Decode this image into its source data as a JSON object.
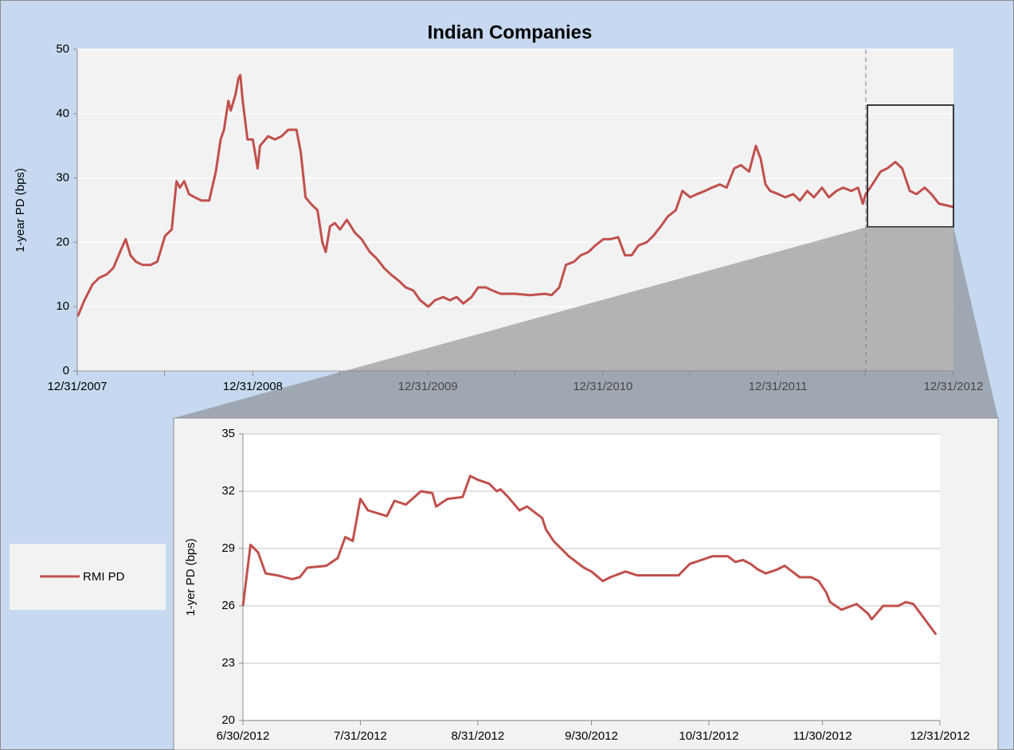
{
  "chart_data": [
    {
      "type": "line",
      "title": "Indian Companies",
      "ylabel": "1-year PD (bps)",
      "x": [
        "2008-01-01",
        "2008-01-15",
        "2008-02-01",
        "2008-02-15",
        "2008-03-01",
        "2008-03-15",
        "2008-04-01",
        "2008-04-10",
        "2008-04-20",
        "2008-05-01",
        "2008-05-15",
        "2008-06-01",
        "2008-06-15",
        "2008-07-01",
        "2008-07-15",
        "2008-07-25",
        "2008-08-01",
        "2008-08-10",
        "2008-08-20",
        "2008-09-01",
        "2008-09-15",
        "2008-10-01",
        "2008-10-15",
        "2008-10-25",
        "2008-11-01",
        "2008-11-10",
        "2008-11-15",
        "2008-11-25",
        "2008-12-01",
        "2008-12-05",
        "2008-12-10",
        "2008-12-20",
        "2008-12-31",
        "2009-01-10",
        "2009-01-15",
        "2009-02-01",
        "2009-02-15",
        "2009-03-01",
        "2009-03-15",
        "2009-04-01",
        "2009-04-10",
        "2009-04-20",
        "2009-05-01",
        "2009-05-15",
        "2009-05-25",
        "2009-06-01",
        "2009-06-10",
        "2009-06-20",
        "2009-07-01",
        "2009-07-15",
        "2009-08-01",
        "2009-08-15",
        "2009-09-01",
        "2009-09-15",
        "2009-10-01",
        "2009-10-15",
        "2009-11-01",
        "2009-11-15",
        "2009-12-01",
        "2009-12-15",
        "2010-01-01",
        "2010-01-15",
        "2010-02-01",
        "2010-02-15",
        "2010-03-01",
        "2010-03-15",
        "2010-04-01",
        "2010-04-15",
        "2010-05-01",
        "2010-05-15",
        "2010-06-01",
        "2010-07-01",
        "2010-08-01",
        "2010-09-01",
        "2010-09-15",
        "2010-10-01",
        "2010-10-15",
        "2010-11-01",
        "2010-11-15",
        "2010-12-01",
        "2010-12-15",
        "2011-01-01",
        "2011-01-15",
        "2011-02-01",
        "2011-02-15",
        "2011-03-01",
        "2011-03-15",
        "2011-04-01",
        "2011-04-15",
        "2011-05-01",
        "2011-05-15",
        "2011-06-01",
        "2011-06-15",
        "2011-07-01",
        "2011-07-15",
        "2011-08-01",
        "2011-08-15",
        "2011-09-01",
        "2011-09-15",
        "2011-10-01",
        "2011-10-15",
        "2011-11-01",
        "2011-11-15",
        "2011-11-25",
        "2011-12-05",
        "2011-12-15",
        "2012-01-01",
        "2012-01-15",
        "2012-02-01",
        "2012-02-15",
        "2012-03-01",
        "2012-03-15",
        "2012-04-01",
        "2012-04-15",
        "2012-05-01",
        "2012-05-15",
        "2012-06-01",
        "2012-06-15",
        "2012-06-25",
        "2012-07-01",
        "2012-07-15",
        "2012-08-01",
        "2012-08-15",
        "2012-09-01",
        "2012-09-15",
        "2012-10-01",
        "2012-10-15",
        "2012-11-01",
        "2012-11-15",
        "2012-12-01",
        "2012-12-31"
      ],
      "series": [
        {
          "name": "RMI PD",
          "color": "#c0504d",
          "values": [
            8.5,
            11,
            13.5,
            14.5,
            15,
            16,
            19,
            20.5,
            18,
            17,
            16.5,
            16.5,
            17,
            21,
            22,
            29.5,
            28.5,
            29.5,
            27.5,
            27,
            26.5,
            26.5,
            31,
            36,
            37.5,
            42,
            40.5,
            43,
            45.5,
            46,
            42,
            36,
            36,
            31.5,
            35,
            36.5,
            36,
            36.5,
            37.5,
            37.5,
            34,
            27,
            26,
            25,
            20,
            18.5,
            22.5,
            23,
            22,
            23.5,
            21.5,
            20.5,
            18.5,
            17.5,
            16,
            15,
            14,
            13,
            12.5,
            11,
            10,
            11,
            11.5,
            11,
            11.5,
            10.5,
            11.5,
            13,
            13,
            12.5,
            12,
            12,
            11.8,
            12,
            11.8,
            13,
            16.5,
            17,
            18,
            18.5,
            19.5,
            20.5,
            20.5,
            20.8,
            18,
            18,
            19.5,
            20,
            21,
            22.5,
            24,
            25,
            28,
            27,
            27.5,
            28,
            28.5,
            29,
            28.5,
            31.5,
            32,
            31,
            35,
            33,
            29,
            28,
            27.5,
            27,
            27.5,
            26.5,
            28,
            27,
            28.5,
            27,
            28,
            28.5,
            28,
            28.5,
            26,
            27.5,
            29,
            31,
            31.5,
            32.5,
            31.5,
            28,
            27.5,
            28.5,
            27.5,
            26,
            25.5
          ]
        }
      ],
      "xlim": [
        "2007-12-31",
        "2012-12-31"
      ],
      "xticks": [
        {
          "value": "2007-12-31",
          "label": "12/31/2007"
        },
        {
          "value": "2008-12-31",
          "label": "12/31/2008"
        },
        {
          "value": "2009-12-31",
          "label": "12/31/2009"
        },
        {
          "value": "2010-12-31",
          "label": "12/31/2010"
        },
        {
          "value": "2011-12-31",
          "label": "12/31/2011"
        },
        {
          "value": "2012-12-31",
          "label": "12/31/2012"
        }
      ],
      "xminorticks": [
        "2008-06-30",
        "2009-06-30",
        "2010-06-30",
        "2011-06-30",
        "2012-06-30"
      ],
      "ylim": [
        0,
        50
      ],
      "yticks": [
        0,
        10,
        20,
        30,
        40,
        50
      ],
      "grid": true
    },
    {
      "type": "line",
      "ylabel": "1-yer PD (bps)",
      "x": [
        "2012-06-30",
        "2012-07-02",
        "2012-07-04",
        "2012-07-06",
        "2012-07-09",
        "2012-07-13",
        "2012-07-15",
        "2012-07-17",
        "2012-07-22",
        "2012-07-25",
        "2012-07-27",
        "2012-07-29",
        "2012-07-31",
        "2012-08-02",
        "2012-08-07",
        "2012-08-09",
        "2012-08-12",
        "2012-08-16",
        "2012-08-19",
        "2012-08-20",
        "2012-08-23",
        "2012-08-27",
        "2012-08-29",
        "2012-08-31",
        "2012-09-03",
        "2012-09-05",
        "2012-09-06",
        "2012-09-08",
        "2012-09-11",
        "2012-09-13",
        "2012-09-17",
        "2012-09-18",
        "2012-09-20",
        "2012-09-24",
        "2012-09-28",
        "2012-09-30",
        "2012-10-03",
        "2012-10-05",
        "2012-10-09",
        "2012-10-12",
        "2012-10-18",
        "2012-10-23",
        "2012-10-26",
        "2012-10-29",
        "2012-11-01",
        "2012-11-05",
        "2012-11-07",
        "2012-11-09",
        "2012-11-11",
        "2012-11-13",
        "2012-11-15",
        "2012-11-18",
        "2012-11-20",
        "2012-11-22",
        "2012-11-24",
        "2012-11-27",
        "2012-11-29",
        "2012-12-01",
        "2012-12-02",
        "2012-12-05",
        "2012-12-09",
        "2012-12-12",
        "2012-12-13",
        "2012-12-16",
        "2012-12-20",
        "2012-12-22",
        "2012-12-24",
        "2012-12-30"
      ],
      "series": [
        {
          "color": "#c0504d",
          "values": [
            26.0,
            29.2,
            28.8,
            27.7,
            27.6,
            27.4,
            27.5,
            28.0,
            28.1,
            28.5,
            29.6,
            29.4,
            31.6,
            31.0,
            30.7,
            31.5,
            31.3,
            32.0,
            31.9,
            31.2,
            31.6,
            31.7,
            32.8,
            32.6,
            32.4,
            32.0,
            32.1,
            31.7,
            31.0,
            31.2,
            30.6,
            30.0,
            29.4,
            28.6,
            28.0,
            27.8,
            27.3,
            27.5,
            27.8,
            27.6,
            27.6,
            27.6,
            28.2,
            28.4,
            28.6,
            28.6,
            28.3,
            28.4,
            28.2,
            27.9,
            27.7,
            27.9,
            28.1,
            27.8,
            27.5,
            27.5,
            27.3,
            26.7,
            26.2,
            25.8,
            26.1,
            25.6,
            25.3,
            26.0,
            26.0,
            26.2,
            26.1,
            24.5
          ]
        }
      ],
      "xlim": [
        "2012-06-30",
        "2012-12-31"
      ],
      "xticks": [
        {
          "value": "2012-06-30",
          "label": "6/30/2012"
        },
        {
          "value": "2012-07-31",
          "label": "7/31/2012"
        },
        {
          "value": "2012-08-31",
          "label": "8/31/2012"
        },
        {
          "value": "2012-09-30",
          "label": "9/30/2012"
        },
        {
          "value": "2012-10-31",
          "label": "10/31/2012"
        },
        {
          "value": "2012-11-30",
          "label": "11/30/2012"
        },
        {
          "value": "2012-12-31",
          "label": "12/31/2012"
        }
      ],
      "ylim": [
        20,
        35
      ],
      "yticks": [
        20,
        23,
        26,
        29,
        32,
        35
      ],
      "grid": true
    }
  ]
}
